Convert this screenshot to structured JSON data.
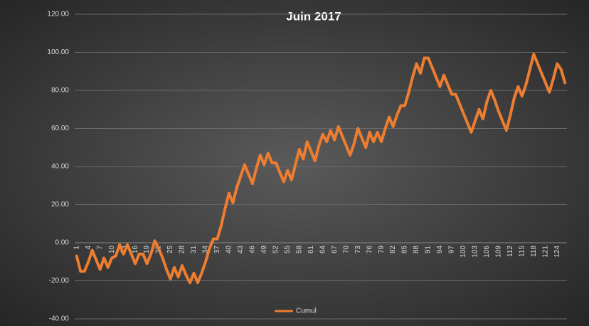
{
  "chart_data": {
    "type": "line",
    "title": "Juin  2017",
    "categories": [
      1,
      null,
      null,
      4,
      null,
      null,
      7,
      null,
      null,
      10,
      null,
      null,
      13,
      null,
      null,
      16,
      null,
      null,
      19,
      null,
      null,
      22,
      null,
      null,
      25,
      null,
      null,
      28,
      null,
      null,
      31,
      null,
      null,
      34,
      null,
      null,
      37,
      null,
      null,
      40,
      null,
      null,
      43,
      null,
      null,
      46,
      null,
      null,
      49,
      null,
      null,
      52,
      null,
      null,
      55,
      null,
      null,
      58,
      null,
      null,
      61,
      null,
      null,
      64,
      null,
      null,
      67,
      null,
      null,
      70,
      null,
      null,
      73,
      null,
      null,
      76,
      null,
      null,
      79,
      null,
      null,
      82,
      null,
      null,
      85,
      null,
      null,
      88,
      null,
      null,
      91,
      null,
      null,
      94,
      null,
      null,
      97,
      null,
      null,
      100,
      null,
      null,
      103,
      null,
      null,
      106,
      null,
      null,
      109,
      null,
      null,
      112,
      null,
      null,
      115,
      null,
      null,
      118,
      null,
      null,
      121,
      null,
      null,
      124,
      null,
      null
    ],
    "series": [
      {
        "name": "Cumul",
        "color": "#ed7d31",
        "values": [
          -7,
          -15,
          -15,
          -10,
          -4,
          -9,
          -14,
          -8,
          -13,
          -8,
          -7,
          -1,
          -6,
          -1,
          -6,
          -11,
          -6,
          -6,
          -11,
          -6,
          1,
          -3,
          -8,
          -14,
          -19,
          -13,
          -18,
          -12,
          -17,
          -21,
          -16,
          -21,
          -16,
          -10,
          -3,
          2,
          2,
          9,
          18,
          26,
          21,
          29,
          35,
          41,
          36,
          31,
          39,
          46,
          41,
          47,
          42,
          42,
          37,
          32,
          38,
          33,
          41,
          49,
          44,
          53,
          48,
          43,
          51,
          57,
          53,
          59,
          54,
          61,
          56,
          51,
          46,
          52,
          60,
          55,
          50,
          58,
          53,
          58,
          53,
          60,
          66,
          61,
          67,
          72,
          72,
          79,
          87,
          94,
          89,
          97,
          97,
          92,
          87,
          82,
          88,
          83,
          78,
          78,
          73,
          68,
          63,
          58,
          64,
          70,
          65,
          74,
          80,
          75,
          69,
          64,
          59,
          67,
          76,
          82,
          77,
          83,
          91,
          99,
          94,
          89,
          84,
          79,
          86,
          94,
          91,
          84
        ]
      }
    ],
    "ylim": [
      -40,
      120
    ],
    "yticks": [
      {
        "value": -40,
        "label": "-40.00"
      },
      {
        "value": -20,
        "label": "-20.00"
      },
      {
        "value": 0,
        "label": "0.00"
      },
      {
        "value": 20,
        "label": "20.00"
      },
      {
        "value": 40,
        "label": "40.00"
      },
      {
        "value": 60,
        "label": "60.00"
      },
      {
        "value": 80,
        "label": "80.00"
      },
      {
        "value": 100,
        "label": "100.00"
      },
      {
        "value": 120,
        "label": "120.00"
      }
    ],
    "grid": true,
    "legend": "bottom"
  }
}
